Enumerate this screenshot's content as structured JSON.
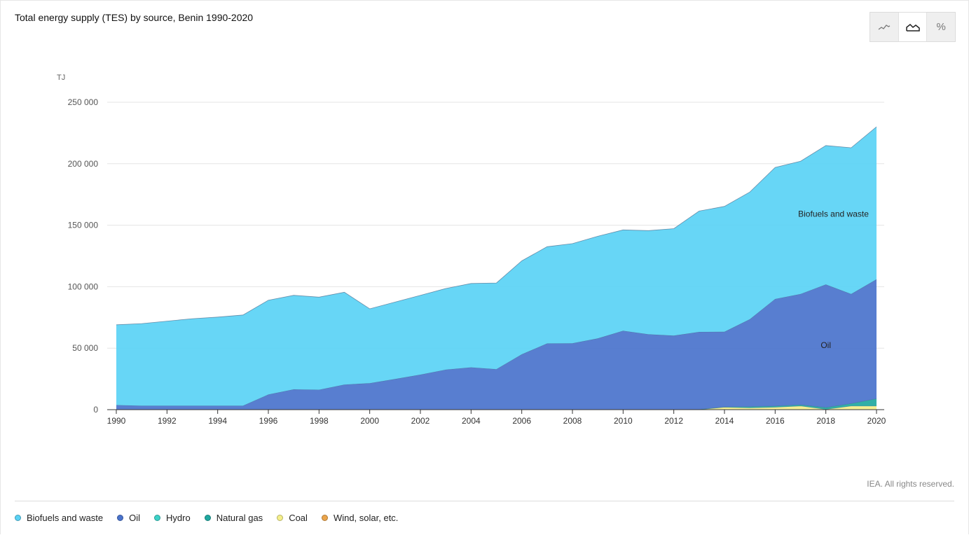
{
  "title": "Total energy supply (TES) by source, Benin 1990-2020",
  "credit": "IEA. All rights reserved.",
  "toggles": [
    {
      "name": "line-chart-icon",
      "active": false
    },
    {
      "name": "area-chart-icon",
      "active": true
    },
    {
      "name": "percent-icon",
      "label": "%",
      "active": false
    }
  ],
  "legend": [
    {
      "label": "Biofuels and waste",
      "color": "#5ad2f5"
    },
    {
      "label": "Oil",
      "color": "#4a73cc"
    },
    {
      "label": "Hydro",
      "color": "#3cd2c8"
    },
    {
      "label": "Natural gas",
      "color": "#1fa8a0"
    },
    {
      "label": "Coal",
      "color": "#f5ef8a"
    },
    {
      "label": "Wind, solar, etc.",
      "color": "#eba54b"
    }
  ],
  "chart_data": {
    "type": "area",
    "stacked": true,
    "unit": "TJ",
    "x": [
      1990,
      1991,
      1992,
      1993,
      1994,
      1995,
      1996,
      1997,
      1998,
      1999,
      2000,
      2001,
      2002,
      2003,
      2004,
      2005,
      2006,
      2007,
      2008,
      2009,
      2010,
      2011,
      2012,
      2013,
      2014,
      2015,
      2016,
      2017,
      2018,
      2019,
      2020
    ],
    "x_ticks": [
      1990,
      1992,
      1994,
      1996,
      1998,
      2000,
      2002,
      2004,
      2006,
      2008,
      2010,
      2012,
      2014,
      2016,
      2018,
      2020
    ],
    "x_tick_labels": [
      "1990",
      "1992",
      "1994",
      "1996",
      "1998",
      "2000",
      "2002",
      "2004",
      "2006",
      "2008",
      "2010",
      "2012",
      "2014",
      "2016",
      "2018",
      "2020"
    ],
    "ylim": [
      0,
      250000
    ],
    "y_ticks": [
      0,
      50000,
      100000,
      150000,
      200000,
      250000
    ],
    "y_tick_labels": [
      "0",
      "50 000",
      "100 000",
      "150 000",
      "200 000",
      "250 000"
    ],
    "grid": true,
    "series": [
      {
        "name": "Coal",
        "color": "#f5ef8a",
        "values": [
          0,
          0,
          0,
          0,
          0,
          0,
          0,
          0,
          0,
          0,
          0,
          0,
          0,
          0,
          0,
          0,
          0,
          0,
          0,
          0,
          0,
          0,
          0,
          0,
          2000,
          1500,
          2000,
          3000,
          300,
          3000,
          3000
        ]
      },
      {
        "name": "Natural gas",
        "color": "#1fa8a0",
        "values": [
          0,
          0,
          0,
          0,
          0,
          0,
          0,
          0,
          0,
          0,
          0,
          0,
          0,
          0,
          0,
          0,
          0,
          0,
          0,
          0,
          0,
          0,
          0,
          300,
          300,
          1000,
          1000,
          1000,
          1500,
          2000,
          6000
        ]
      },
      {
        "name": "Oil",
        "color": "#4a73cc",
        "values": [
          3700,
          3200,
          3200,
          3200,
          3200,
          3200,
          12300,
          16500,
          16200,
          20400,
          21500,
          24900,
          28500,
          32500,
          34400,
          32900,
          45000,
          53800,
          54000,
          57900,
          64100,
          61300,
          60200,
          62900,
          61000,
          71000,
          87000,
          90000,
          100000,
          89000,
          97000
        ]
      },
      {
        "name": "Biofuels and waste",
        "color": "#5ad2f5",
        "values": [
          65300,
          66800,
          68800,
          70800,
          72100,
          73800,
          76700,
          76500,
          75300,
          75100,
          60500,
          62600,
          64500,
          66000,
          68200,
          70100,
          76000,
          78700,
          81000,
          83100,
          82100,
          84300,
          87000,
          98300,
          102000,
          103500,
          107000,
          108000,
          113000,
          119000,
          124000
        ]
      }
    ],
    "annotations": [
      {
        "text": "Biofuels and waste",
        "x": 2018.3,
        "y": 157000
      },
      {
        "text": "Oil",
        "x": 2018.0,
        "y": 50000
      }
    ]
  }
}
